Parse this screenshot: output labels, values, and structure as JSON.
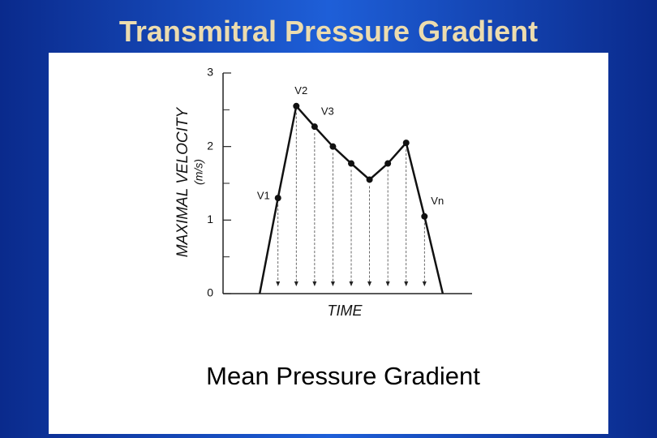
{
  "slide_title": "Transmitral Pressure Gradient",
  "caption": "Mean Pressure Gradient",
  "chart_data": {
    "type": "line",
    "y_label": "MAXIMAL VELOCITY",
    "y_unit": "(m/s)",
    "x_label": "TIME",
    "x": [
      0,
      1,
      2,
      3,
      4,
      5,
      6,
      7,
      8,
      9,
      10
    ],
    "values": [
      0,
      1.3,
      2.55,
      2.27,
      2.0,
      1.77,
      1.55,
      1.77,
      2.05,
      1.05,
      0
    ],
    "point_labels": [
      null,
      "V1",
      "V2",
      "V3",
      null,
      null,
      null,
      null,
      null,
      "Vn",
      null
    ],
    "color": "#111111",
    "xlim": [
      -2,
      11.6
    ],
    "ylim": [
      0,
      3
    ],
    "yticks": [
      0,
      1,
      2,
      3
    ],
    "minor_yticks": [
      0.5,
      1.5,
      2.5
    ]
  }
}
